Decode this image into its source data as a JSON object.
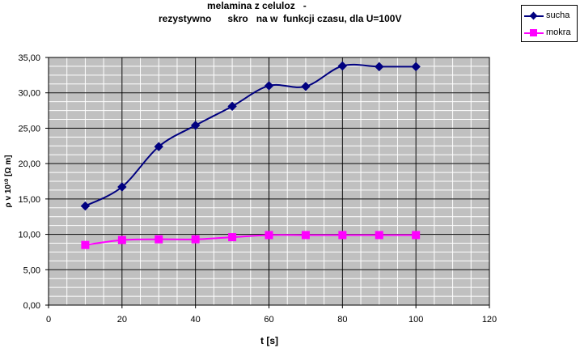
{
  "chart_data": {
    "type": "line",
    "title_line1": "melamina z celuloz   -",
    "title_line2": "rezystywno      skro   na w  funkcji czasu, dla U=100V",
    "xlabel": "t [s]",
    "ylabel": "ρ v 10¹⁰ [Ω m]",
    "xlim": [
      0,
      120
    ],
    "ylim": [
      0,
      35
    ],
    "x_ticks": [
      0,
      20,
      40,
      60,
      80,
      100,
      120
    ],
    "y_ticks": [
      "0,00",
      "5,00",
      "10,00",
      "15,00",
      "20,00",
      "25,00",
      "30,00",
      "35,00"
    ],
    "grid": true,
    "legend_position": "top-right",
    "series": [
      {
        "name": "sucha",
        "color": "#000080",
        "marker": "diamond",
        "x": [
          10,
          20,
          30,
          40,
          50,
          60,
          70,
          80,
          90,
          100
        ],
        "values": [
          14.0,
          16.7,
          22.4,
          25.4,
          28.1,
          31.0,
          30.9,
          33.8,
          33.7,
          33.7
        ]
      },
      {
        "name": "mokra",
        "color": "#ff00ff",
        "marker": "square",
        "x": [
          10,
          20,
          30,
          40,
          50,
          60,
          70,
          80,
          90,
          100
        ],
        "values": [
          8.5,
          9.2,
          9.3,
          9.3,
          9.6,
          9.9,
          9.9,
          9.9,
          9.9,
          9.9
        ]
      }
    ]
  }
}
